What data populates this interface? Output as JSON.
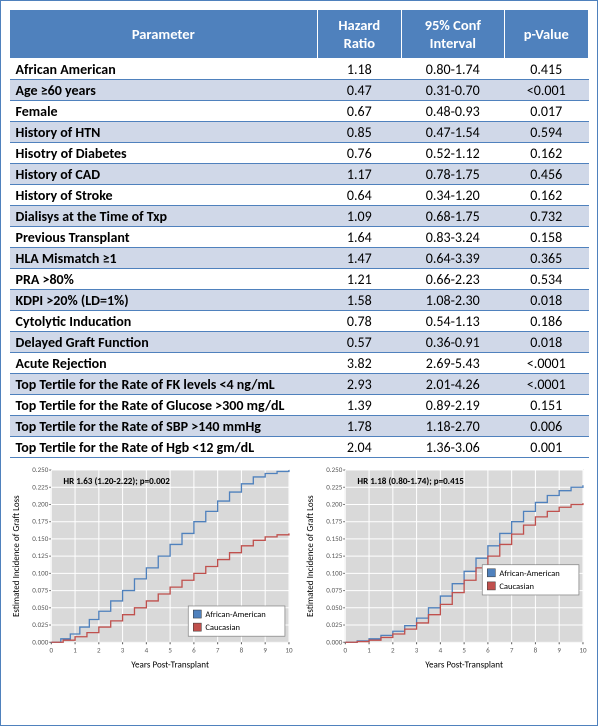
{
  "table": {
    "header_bg": "#4f81bd",
    "header_fg": "#ffffff",
    "alt_row_bg": "#d0d8e8",
    "columns": [
      "Parameter",
      "Hazard Ratio",
      "95% Conf Interval",
      "p-Value"
    ],
    "rows": [
      [
        "African American",
        "1.18",
        "0.80-1.74",
        "0.415"
      ],
      [
        "Age ≥60 years",
        "0.47",
        "0.31-0.70",
        "<0.001"
      ],
      [
        "Female",
        "0.67",
        "0.48-0.93",
        "0.017"
      ],
      [
        "History of HTN",
        "0.85",
        "0.47-1.54",
        "0.594"
      ],
      [
        "Hisotry of Diabetes",
        "0.76",
        "0.52-1.12",
        "0.162"
      ],
      [
        "History of CAD",
        "1.17",
        "0.78-1.75",
        "0.456"
      ],
      [
        "History of Stroke",
        "0.64",
        "0.34-1.20",
        "0.162"
      ],
      [
        "Dialisys at the Time of Txp",
        "1.09",
        "0.68-1.75",
        "0.732"
      ],
      [
        "Previous Transplant",
        "1.64",
        "0.83-3.24",
        "0.158"
      ],
      [
        "HLA Mismatch ≥1",
        "1.47",
        "0.64-3.39",
        "0.365"
      ],
      [
        "PRA >80%",
        "1.21",
        "0.66-2.23",
        "0.534"
      ],
      [
        "KDPI >20% (LD=1%)",
        "1.58",
        "1.08-2.30",
        "0.018"
      ],
      [
        "Cytolytic Inducation",
        "0.78",
        "0.54-1.13",
        "0.186"
      ],
      [
        "Delayed Graft Function",
        "0.57",
        "0.36-0.91",
        "0.018"
      ],
      [
        "Acute Rejection",
        "3.82",
        "2.69-5.43",
        "<.0001"
      ],
      [
        "Top Tertile for the Rate of FK levels <4 ng/mL",
        "2.93",
        "2.01-4.26",
        "<.0001"
      ],
      [
        "Top Tertile for the Rate of Glucose >300 mg/dL",
        "1.39",
        "0.89-2.19",
        "0.151"
      ],
      [
        "Top Tertile for the Rate of SBP >140 mmHg",
        "1.78",
        "1.18-2.70",
        "0.006"
      ],
      [
        "Top Tertile for the Rate of Hgb <12 gm/dL",
        "2.04",
        "1.36-3.06",
        "0.001"
      ]
    ]
  },
  "charts": {
    "common": {
      "plot_bg": "#d9d9d9",
      "panel_border": "#bfbfbf",
      "series": [
        {
          "label": "African-American",
          "color": "#4f81bd"
        },
        {
          "label": "Caucasian",
          "color": "#c0504d"
        }
      ],
      "xlabel": "Years Post-Transplant",
      "ylabel": "Estimated Incidence of Graft Loss",
      "xlabel_fontsize": 9,
      "ylabel_fontsize": 9,
      "tick_fontsize": 7,
      "xlim": [
        0,
        10
      ],
      "ylim": [
        0,
        0.25
      ],
      "xticks": [
        0,
        1,
        2,
        3,
        4,
        5,
        6,
        7,
        8,
        9,
        10
      ],
      "yticks": [
        0.0,
        0.025,
        0.05,
        0.075,
        0.1,
        0.125,
        0.15,
        0.175,
        0.2,
        0.225,
        0.25
      ],
      "grid_color": "#ffffff",
      "line_width": 1.3
    },
    "left": {
      "annotation": "HR 1.63 (1.20-2.22); p=0.002",
      "series_data": {
        "African-American": [
          [
            0,
            0
          ],
          [
            0.4,
            0.005
          ],
          [
            0.8,
            0.012
          ],
          [
            1.2,
            0.022
          ],
          [
            1.6,
            0.033
          ],
          [
            2.0,
            0.045
          ],
          [
            2.5,
            0.06
          ],
          [
            3.0,
            0.075
          ],
          [
            3.5,
            0.092
          ],
          [
            4.0,
            0.108
          ],
          [
            4.5,
            0.125
          ],
          [
            5.0,
            0.142
          ],
          [
            5.5,
            0.158
          ],
          [
            6.0,
            0.175
          ],
          [
            6.5,
            0.19
          ],
          [
            7.0,
            0.205
          ],
          [
            7.5,
            0.218
          ],
          [
            8.0,
            0.23
          ],
          [
            8.5,
            0.24
          ],
          [
            9.0,
            0.245
          ],
          [
            9.5,
            0.248
          ],
          [
            10.0,
            0.25
          ]
        ],
        "Caucasian": [
          [
            0,
            0
          ],
          [
            0.5,
            0.003
          ],
          [
            1.0,
            0.008
          ],
          [
            1.5,
            0.014
          ],
          [
            2.0,
            0.022
          ],
          [
            2.5,
            0.031
          ],
          [
            3.0,
            0.04
          ],
          [
            3.5,
            0.05
          ],
          [
            4.0,
            0.06
          ],
          [
            4.5,
            0.07
          ],
          [
            5.0,
            0.08
          ],
          [
            5.5,
            0.09
          ],
          [
            6.0,
            0.1
          ],
          [
            6.5,
            0.11
          ],
          [
            7.0,
            0.12
          ],
          [
            7.5,
            0.13
          ],
          [
            8.0,
            0.14
          ],
          [
            8.5,
            0.148
          ],
          [
            9.0,
            0.153
          ],
          [
            9.5,
            0.156
          ],
          [
            10.0,
            0.158
          ]
        ]
      },
      "legend_pos": "bottom-right"
    },
    "right": {
      "annotation": "HR 1.18 (0.80-1.74); p=0.415",
      "series_data": {
        "African-American": [
          [
            0,
            0
          ],
          [
            0.5,
            0.002
          ],
          [
            1.0,
            0.005
          ],
          [
            1.5,
            0.01
          ],
          [
            2.0,
            0.016
          ],
          [
            2.5,
            0.024
          ],
          [
            3.0,
            0.035
          ],
          [
            3.5,
            0.05
          ],
          [
            4.0,
            0.067
          ],
          [
            4.5,
            0.085
          ],
          [
            5.0,
            0.103
          ],
          [
            5.5,
            0.122
          ],
          [
            6.0,
            0.14
          ],
          [
            6.5,
            0.158
          ],
          [
            7.0,
            0.175
          ],
          [
            7.5,
            0.19
          ],
          [
            8.0,
            0.203
          ],
          [
            8.5,
            0.213
          ],
          [
            9.0,
            0.22
          ],
          [
            9.5,
            0.225
          ],
          [
            10.0,
            0.228
          ]
        ],
        "Caucasian": [
          [
            0,
            0
          ],
          [
            0.5,
            0.001
          ],
          [
            1.0,
            0.003
          ],
          [
            1.5,
            0.007
          ],
          [
            2.0,
            0.012
          ],
          [
            2.5,
            0.019
          ],
          [
            3.0,
            0.028
          ],
          [
            3.5,
            0.04
          ],
          [
            4.0,
            0.055
          ],
          [
            4.5,
            0.072
          ],
          [
            5.0,
            0.09
          ],
          [
            5.5,
            0.108
          ],
          [
            6.0,
            0.125
          ],
          [
            6.5,
            0.142
          ],
          [
            7.0,
            0.157
          ],
          [
            7.5,
            0.17
          ],
          [
            8.0,
            0.182
          ],
          [
            8.5,
            0.19
          ],
          [
            9.0,
            0.196
          ],
          [
            9.5,
            0.2
          ],
          [
            10.0,
            0.202
          ]
        ]
      },
      "legend_pos": "middle-right"
    }
  }
}
